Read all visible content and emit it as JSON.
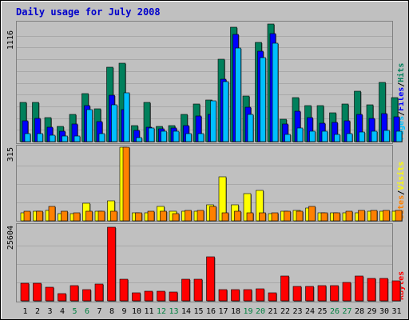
{
  "title": "Daily usage for July 2008",
  "colors": {
    "title": "#0000cc",
    "background": "#c0c0c0",
    "hits": "#00805c",
    "files": "#0000ff",
    "pages": "#00c0ff",
    "visits": "#ffff00",
    "sites": "#ff8000",
    "kbytes": "#ff0000",
    "weekend_label": "#008040",
    "weekday_label": "#000000",
    "separator": "#000000"
  },
  "panels": {
    "top": {
      "max_label": "1116",
      "legend": [
        {
          "text": "Pages",
          "color": "#00c0ff"
        },
        {
          "text": "/",
          "color": "#000000"
        },
        {
          "text": "Files",
          "color": "#0000ff"
        },
        {
          "text": "/",
          "color": "#000000"
        },
        {
          "text": "Hits",
          "color": "#00805c"
        }
      ]
    },
    "middle": {
      "max_label": "315",
      "legend": [
        {
          "text": "Sites",
          "color": "#ff8000"
        },
        {
          "text": "/",
          "color": "#000000"
        },
        {
          "text": "Visits",
          "color": "#ffff00"
        }
      ]
    },
    "bottom": {
      "max_label": "25604",
      "legend": [
        {
          "text": "KBytes",
          "color": "#ff0000"
        }
      ]
    }
  },
  "chart_data": {
    "type": "bar",
    "title": "Daily usage for July 2008",
    "categories": [
      "1",
      "2",
      "3",
      "4",
      "5",
      "6",
      "7",
      "8",
      "9",
      "10",
      "11",
      "12",
      "13",
      "14",
      "15",
      "16",
      "17",
      "18",
      "19",
      "20",
      "21",
      "22",
      "23",
      "24",
      "25",
      "26",
      "27",
      "28",
      "29",
      "30",
      "31"
    ],
    "weekend_days": [
      "5",
      "6",
      "12",
      "13",
      "19",
      "20",
      "26",
      "27"
    ],
    "panels": [
      {
        "name": "Hits / Files / Pages",
        "ymax": 1116,
        "series": [
          {
            "name": "Hits",
            "values": [
              370,
              370,
              225,
              145,
              260,
              455,
              310,
              705,
              745,
              155,
              375,
              145,
              155,
              255,
              360,
              395,
              785,
              1085,
              435,
              945,
              1116,
              210,
              420,
              340,
              340,
              275,
              360,
              475,
              350,
              560,
              415
            ]
          },
          {
            "name": "Files",
            "values": [
              200,
              220,
              140,
              95,
              170,
              340,
              190,
              440,
              300,
              105,
              140,
              125,
              130,
              150,
              240,
              255,
              590,
              1015,
              330,
              860,
              1025,
              170,
              285,
              230,
              175,
              185,
              200,
              260,
              220,
              265,
              235
            ]
          },
          {
            "name": "Pages",
            "values": [
              75,
              75,
              60,
              55,
              55,
              305,
              75,
              350,
              465,
              40,
              130,
              95,
              95,
              75,
              75,
              390,
              570,
              890,
              255,
              795,
              935,
              70,
              130,
              100,
              95,
              70,
              75,
              90,
              100,
              110,
              95
            ]
          }
        ]
      },
      {
        "name": "Visits / Sites",
        "ymax": 315,
        "series": [
          {
            "name": "Visits",
            "values": [
              35,
              40,
              45,
              30,
              30,
              75,
              40,
              85,
              315,
              35,
              35,
              60,
              40,
              40,
              40,
              70,
              190,
              70,
              115,
              130,
              30,
              40,
              45,
              55,
              35,
              35,
              35,
              35,
              40,
              40,
              40
            ]
          },
          {
            "name": "Sites",
            "values": [
              40,
              40,
              60,
              40,
              35,
              40,
              40,
              40,
              315,
              35,
              40,
              40,
              30,
              45,
              45,
              60,
              35,
              40,
              35,
              35,
              35,
              40,
              40,
              60,
              35,
              35,
              40,
              45,
              45,
              45,
              45
            ]
          }
        ]
      },
      {
        "name": "KBytes",
        "ymax": 25604,
        "series": [
          {
            "name": "KBytes",
            "values": [
              6200,
              6200,
              4600,
              2400,
              5300,
              3800,
              5800,
              25604,
              7600,
              2700,
              3400,
              3400,
              3200,
              7600,
              7600,
              15200,
              3900,
              3800,
              3900,
              4200,
              2900,
              8700,
              5100,
              5100,
              5400,
              5400,
              6500,
              8600,
              7800,
              7700,
              7000
            ]
          }
        ]
      }
    ]
  }
}
